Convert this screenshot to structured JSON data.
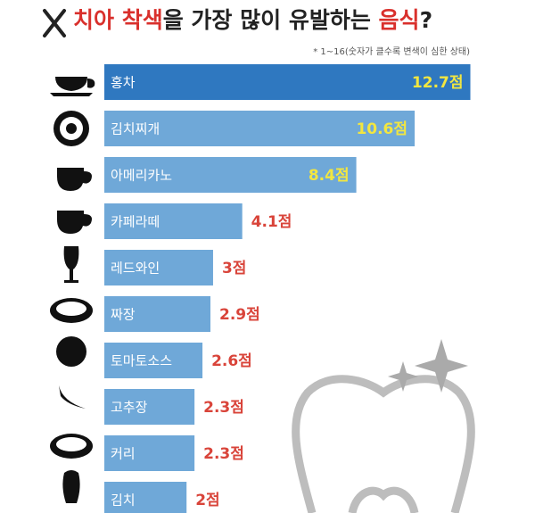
{
  "chart_data": {
    "type": "hbar",
    "title": [
      {
        "text": "치아 착색",
        "color": "#d9302c"
      },
      {
        "text": "을 가장 많이 유발하는 ",
        "color": "#222222"
      },
      {
        "text": "음식",
        "color": "#d9302c"
      },
      {
        "text": "?",
        "color": "#222222"
      }
    ],
    "subtitle": "* 1~16(숫자가 클수록 변색이 심한 상태)",
    "categories": [
      "홍차",
      "김치찌개",
      "아메리카노",
      "카페라떼",
      "레드와인",
      "짜장",
      "토마토소스",
      "고추장",
      "커리",
      "김치"
    ],
    "values": [
      12.7,
      10.6,
      8.4,
      4.1,
      3,
      2.9,
      2.6,
      2.3,
      2.3,
      2
    ],
    "value_labels": [
      "12.7점",
      "10.6점",
      "8.4점",
      "4.1점",
      "3점",
      "2.9점",
      "2.6점",
      "2.3점",
      "2.3점",
      "2점"
    ],
    "colors": [
      "#2f78c0",
      "#6fa8d8",
      "#6fa8d8",
      "#6fa8d8",
      "#6fa8d8",
      "#6fa8d8",
      "#6fa8d8",
      "#6fa8d8",
      "#6fa8d8",
      "#6fa8d8"
    ],
    "label_colors": [
      "#f2e640",
      "#f2e640",
      "#f2e640",
      "#d9443a",
      "#d9443a",
      "#d9443a",
      "#d9443a",
      "#d9443a",
      "#d9443a",
      "#d9443a"
    ],
    "xlim": [
      -1.1,
      14.7
    ]
  }
}
